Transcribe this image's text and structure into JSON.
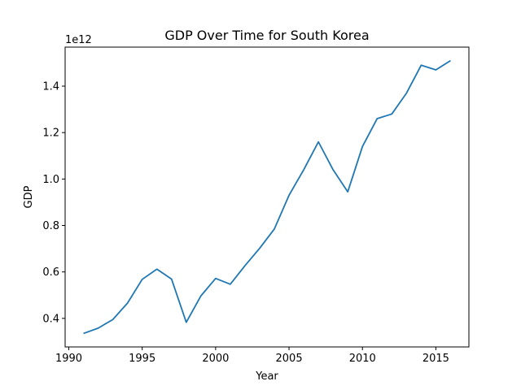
{
  "chart_data": {
    "type": "line",
    "title": "GDP Over Time for South Korea",
    "xlabel": "Year",
    "ylabel": "GDP",
    "y_offset_label": "1e12",
    "y_multiplier": 1000000000000.0,
    "xlim": [
      1989.75,
      2017.25
    ],
    "ylim": [
      0.277,
      1.568
    ],
    "x_ticks": [
      1990,
      1995,
      2000,
      2005,
      2010,
      2015
    ],
    "y_ticks": [
      0.4,
      0.6,
      0.8,
      1.0,
      1.2,
      1.4
    ],
    "y_tick_labels": [
      "0.4",
      "0.6",
      "0.8",
      "1.0",
      "1.2",
      "1.4"
    ],
    "grid": false,
    "line_color": "#1f77b4",
    "series": [
      {
        "x": [
          1991,
          1992,
          1993,
          1994,
          1995,
          1996,
          1997,
          1998,
          1999,
          2000,
          2001,
          2002,
          2003,
          2004,
          2005,
          2006,
          2007,
          2008,
          2009,
          2010,
          2011,
          2012,
          2013,
          2014,
          2015,
          2016
        ],
        "values": [
          0.335,
          0.358,
          0.395,
          0.466,
          0.568,
          0.612,
          0.569,
          0.383,
          0.497,
          0.572,
          0.547,
          0.627,
          0.702,
          0.785,
          0.93,
          1.04,
          1.16,
          1.04,
          0.945,
          1.14,
          1.26,
          1.28,
          1.37,
          1.49,
          1.47,
          1.51
        ]
      }
    ]
  }
}
